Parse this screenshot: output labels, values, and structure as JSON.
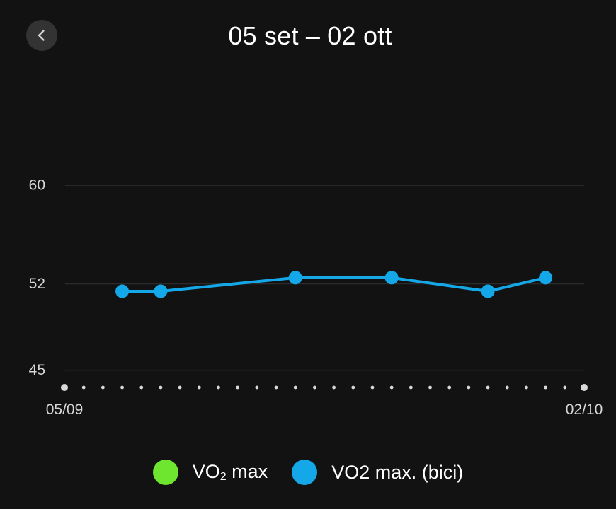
{
  "header": {
    "title": "05 set – 02 ott",
    "back_icon": "chevron-left-icon"
  },
  "chart_data": {
    "type": "line",
    "title": "",
    "xlabel": "",
    "ylabel": "",
    "ylim": [
      43.6,
      62.7
    ],
    "y_ticks": [
      "60",
      "52",
      "45"
    ],
    "y_tick_values": [
      60,
      52,
      45
    ],
    "x_range": [
      "2023-09-05",
      "2023-10-02"
    ],
    "x_tick_labels": [
      "05/09",
      "02/10"
    ],
    "x_axis_dots": 28,
    "grid": true,
    "legend_position": "bottom-center",
    "series": [
      {
        "name": "VO2 max. (bici)",
        "color": "#14a8e8",
        "x": [
          "2023-09-08",
          "2023-09-10",
          "2023-09-17",
          "2023-09-22",
          "2023-09-27",
          "2023-09-30"
        ],
        "values": [
          51.4,
          51.4,
          52.5,
          52.5,
          51.4,
          52.5
        ]
      }
    ]
  },
  "legend": {
    "items": [
      {
        "label_main": "VO",
        "label_sub": "2",
        "label_rest": " max",
        "color": "#6ee62f"
      },
      {
        "label": "VO2 max. (bici)",
        "color": "#14a8e8"
      }
    ]
  },
  "colors": {
    "background": "#121212",
    "gridline": "#2b2b2b",
    "axis_text": "#d8d8d8",
    "axis_dot": "#d9d9d9"
  }
}
